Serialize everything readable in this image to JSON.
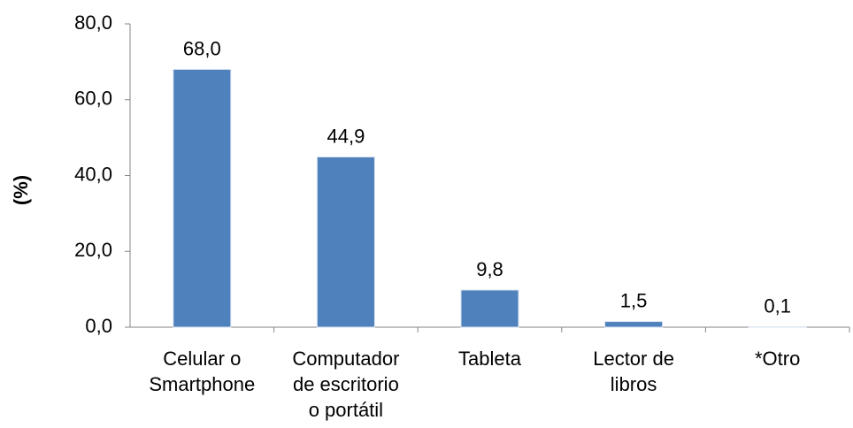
{
  "chart_data": {
    "type": "bar",
    "y_label": "(%)",
    "categories": [
      "Celular o\nSmartphone",
      "Computador\nde escritorio\no portátil",
      "Tableta",
      "Lector de\nlibros",
      "*Otro"
    ],
    "values": [
      68.0,
      44.9,
      9.8,
      1.5,
      0.1
    ],
    "value_labels": [
      "68,0",
      "44,9",
      "9,8",
      "1,5",
      "0,1"
    ],
    "color": "#4f81bd",
    "ylim": [
      0,
      80
    ],
    "yticks": [
      {
        "value": 0,
        "label": "0,0"
      },
      {
        "value": 20,
        "label": "20,0"
      },
      {
        "value": 40,
        "label": "40,0"
      },
      {
        "value": 60,
        "label": "60,0"
      },
      {
        "value": 80,
        "label": "80,0"
      }
    ],
    "grid": false
  }
}
